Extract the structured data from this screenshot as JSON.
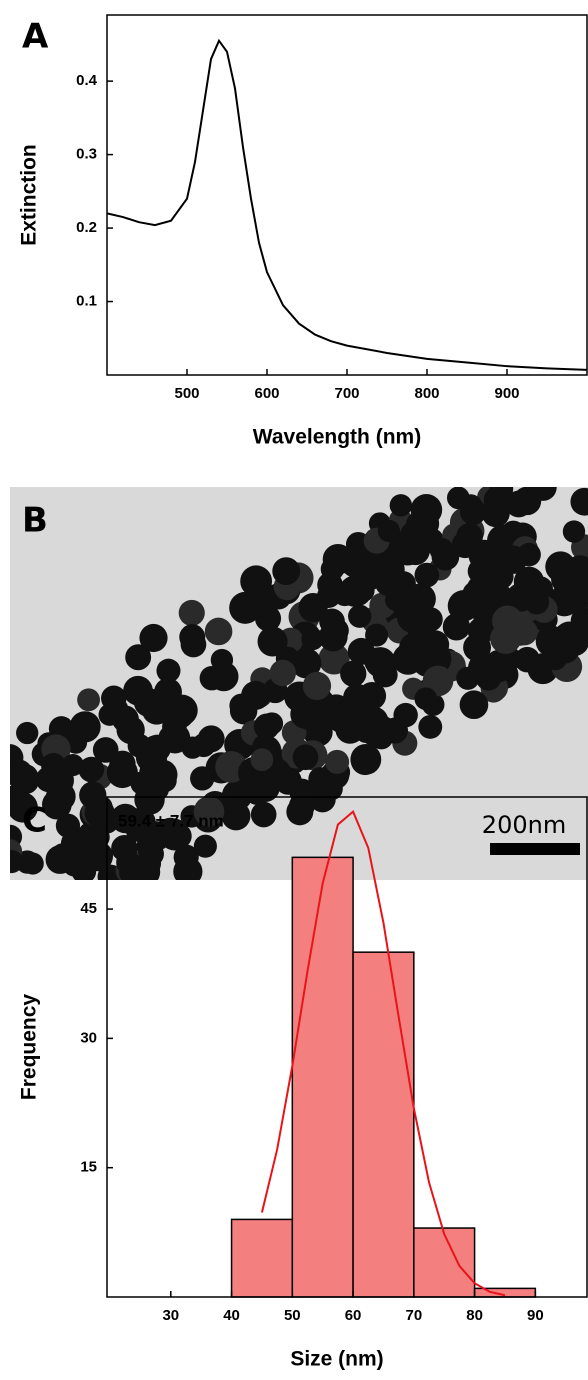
{
  "chart_data": [
    {
      "type": "line",
      "panel_label": "A",
      "xlabel": "Wavelength (nm)",
      "ylabel": "Extinction",
      "x": [
        400,
        420,
        440,
        460,
        480,
        500,
        510,
        520,
        530,
        540,
        550,
        560,
        570,
        580,
        590,
        600,
        620,
        640,
        660,
        680,
        700,
        750,
        800,
        850,
        900,
        950,
        1000
      ],
      "values": [
        0.22,
        0.215,
        0.208,
        0.204,
        0.21,
        0.24,
        0.29,
        0.36,
        0.43,
        0.455,
        0.44,
        0.39,
        0.31,
        0.24,
        0.18,
        0.14,
        0.095,
        0.07,
        0.055,
        0.046,
        0.04,
        0.03,
        0.022,
        0.017,
        0.012,
        0.009,
        0.007
      ],
      "color": "#000000",
      "xlim": [
        400,
        1000
      ],
      "xticks": [
        500,
        600,
        700,
        800,
        900
      ],
      "ylim": [
        0,
        0.49
      ],
      "yticks": [
        0.1,
        0.2,
        0.3,
        0.4
      ]
    },
    {
      "type": "histogram",
      "panel_label": "C",
      "xlabel": "Size (nm)",
      "ylabel": "Frequency",
      "annotation": "59.4 ± 7.7 nm",
      "bins": [
        40,
        50,
        60,
        70,
        80,
        90
      ],
      "values": [
        9,
        51,
        40,
        8,
        1
      ],
      "color": "#f47f7f",
      "curve": {
        "x": [
          45,
          47.5,
          50,
          52.5,
          55,
          57.5,
          60,
          62.5,
          65,
          67.5,
          70,
          72.5,
          75,
          77.5,
          80,
          82.5,
          85
        ],
        "values": [
          9.8,
          17.1,
          26.8,
          37.8,
          48.0,
          54.8,
          56.3,
          52.1,
          43.4,
          32.5,
          21.9,
          13.3,
          7.3,
          3.6,
          1.6,
          0.6,
          0.2
        ],
        "color": "#e8141a"
      },
      "xlim": [
        19.5,
        98.5
      ],
      "xticks": [
        30,
        40,
        50,
        60,
        70,
        80,
        90
      ],
      "ylim": [
        0,
        58
      ],
      "yticks": [
        15,
        30,
        45
      ]
    }
  ],
  "image": {
    "panel_label": "B",
    "scale_bar_label": "200nm"
  }
}
